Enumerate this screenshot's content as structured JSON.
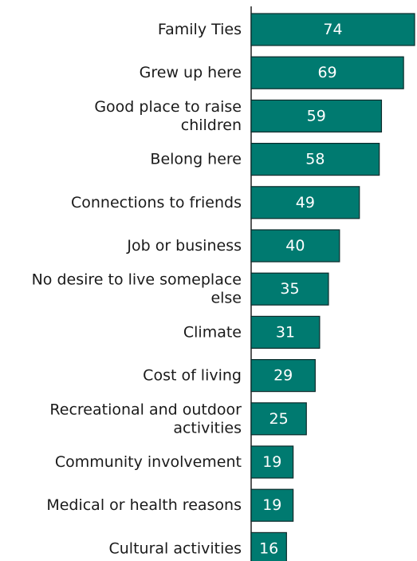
{
  "chart_data": {
    "type": "bar",
    "orientation": "horizontal",
    "title": "",
    "xlabel": "",
    "ylabel": "",
    "categories": [
      [
        "Family Ties"
      ],
      [
        "Grew up here"
      ],
      [
        "Good place to raise",
        "children"
      ],
      [
        "Belong here"
      ],
      [
        "Connections to friends"
      ],
      [
        "Job or business"
      ],
      [
        "No desire to live someplace",
        "else"
      ],
      [
        "Climate"
      ],
      [
        "Cost of living"
      ],
      [
        "Recreational and outdoor",
        "activities"
      ],
      [
        "Community involvement"
      ],
      [
        "Medical or health reasons"
      ],
      [
        "Cultural activities"
      ]
    ],
    "values": [
      74,
      69,
      59,
      58,
      49,
      40,
      35,
      31,
      29,
      25,
      19,
      19,
      16
    ],
    "xlim": [
      0,
      74
    ],
    "bar_color": "#007a70",
    "grid": false,
    "legend": "none"
  }
}
